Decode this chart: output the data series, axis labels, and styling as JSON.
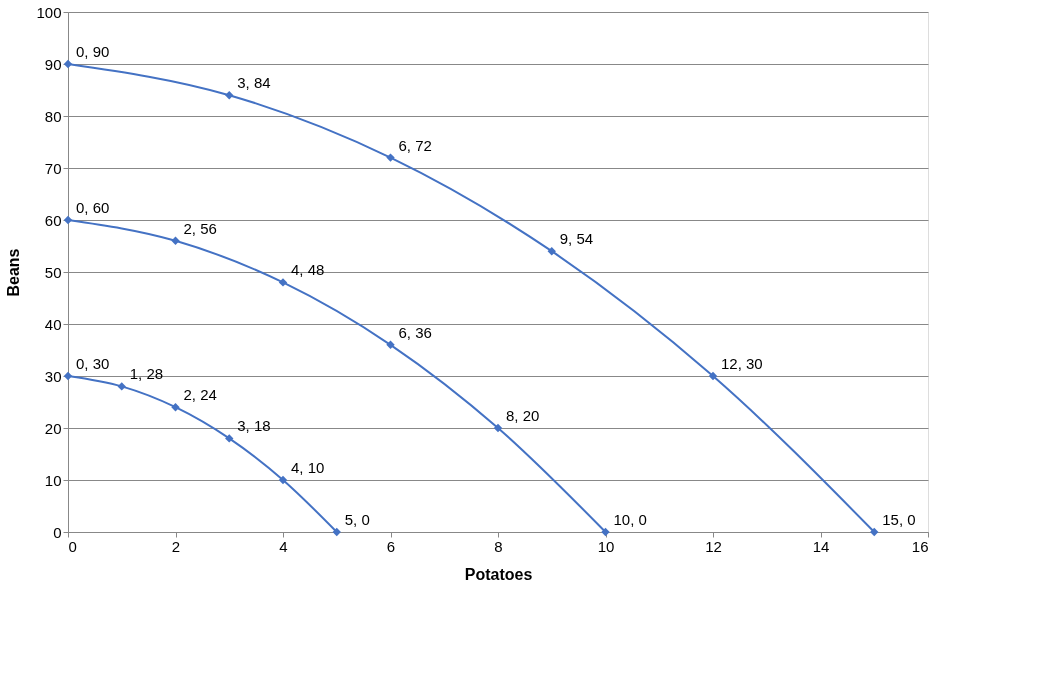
{
  "chart_data": {
    "type": "line",
    "xlabel": "Potatoes",
    "ylabel": "Beans",
    "xlim": [
      0,
      16
    ],
    "xticks": [
      0,
      2,
      4,
      6,
      8,
      10,
      12,
      14,
      16
    ],
    "ylim": [
      0,
      100
    ],
    "yticks": [
      0,
      10,
      20,
      30,
      40,
      50,
      60,
      70,
      80,
      90,
      100
    ],
    "grid": "y",
    "legend": false,
    "marker": "diamond",
    "line_style": "solid",
    "series": [
      {
        "color": "#4472c4",
        "x": [
          0,
          3,
          6,
          9,
          12,
          15
        ],
        "values": [
          90,
          84,
          72,
          54,
          30,
          0
        ],
        "value_labels": [
          "0, 90",
          "3, 84",
          "6, 72",
          "9, 54",
          "12, 30",
          "15, 0"
        ]
      },
      {
        "color": "#4472c4",
        "x": [
          0,
          2,
          4,
          6,
          8,
          10
        ],
        "values": [
          60,
          56,
          48,
          36,
          20,
          0
        ],
        "value_labels": [
          "0, 60",
          "2, 56",
          "4, 48",
          "6, 36",
          "8, 20",
          "10, 0"
        ]
      },
      {
        "color": "#4472c4",
        "x": [
          0,
          1,
          2,
          3,
          4,
          5
        ],
        "values": [
          30,
          28,
          24,
          18,
          10,
          0
        ],
        "value_labels": [
          "0, 30",
          "1, 28",
          "2, 24",
          "3, 18",
          "4, 10",
          "5, 0"
        ]
      }
    ]
  }
}
